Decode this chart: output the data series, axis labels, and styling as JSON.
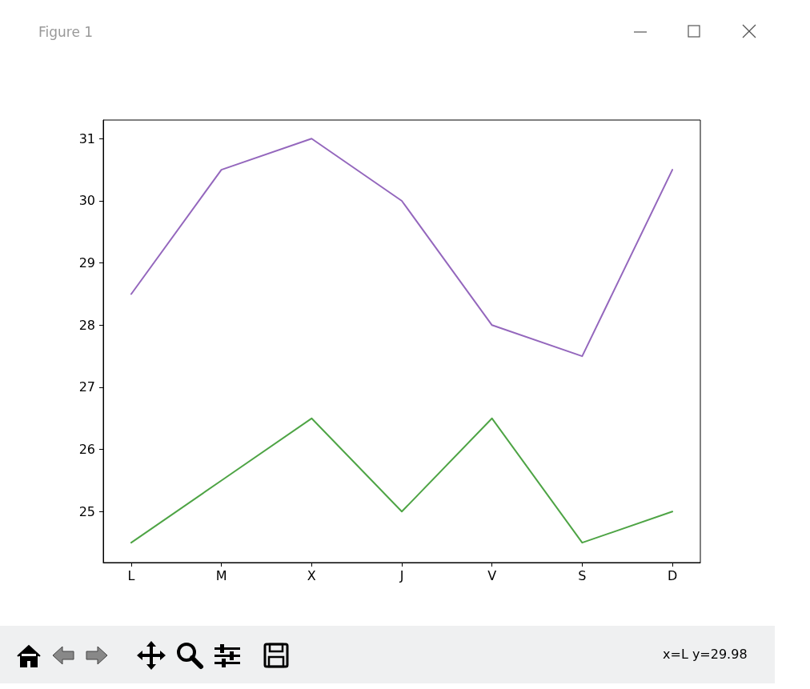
{
  "chart_data": {
    "type": "line",
    "categories": [
      "L",
      "M",
      "X",
      "J",
      "V",
      "S",
      "D"
    ],
    "series": [
      {
        "color": "#9467bd",
        "values": [
          28.5,
          30.5,
          31,
          30,
          28,
          27.5,
          30.5
        ]
      },
      {
        "color": "#4ea445",
        "values": [
          24.5,
          25.5,
          26.5,
          25,
          26.5,
          24.5,
          25
        ]
      }
    ],
    "ylim": [
      24.18,
      31.3
    ],
    "yticks": [
      25,
      26,
      27,
      28,
      29,
      30,
      31
    ],
    "annotations": [
      "Figure 1",
      "x=L y=29.98"
    ]
  }
}
